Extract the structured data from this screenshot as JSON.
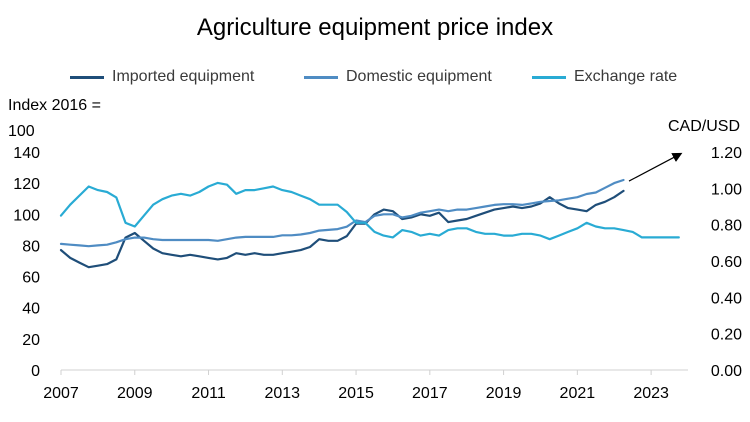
{
  "chart_data": {
    "type": "line",
    "title": "Agriculture equipment price index",
    "ylabel_left": "Index 2016 = 100",
    "ylabel_left_line1": "Index 2016 =",
    "ylabel_left_line2": "100",
    "ylabel_right": "CAD/USD",
    "xlim": [
      2007,
      2024
    ],
    "ylim_left": [
      0,
      140
    ],
    "ylim_right": [
      0,
      1.2
    ],
    "x_ticks": [
      "2007",
      "2009",
      "2011",
      "2013",
      "2015",
      "2017",
      "2019",
      "2021",
      "2023"
    ],
    "y_ticks_left": [
      "0",
      "20",
      "40",
      "60",
      "80",
      "100",
      "120",
      "140"
    ],
    "y_ticks_right": [
      "0.00",
      "0.20",
      "0.40",
      "0.60",
      "0.80",
      "1.00",
      "1.20"
    ],
    "grid": false,
    "legend_position": "top",
    "series": [
      {
        "name": "Imported equipment",
        "axis": "left",
        "color": "#1f4e79",
        "x": [
          2007.0,
          2007.25,
          2007.5,
          2007.75,
          2008.0,
          2008.25,
          2008.5,
          2008.75,
          2009.0,
          2009.25,
          2009.5,
          2009.75,
          2010.0,
          2010.25,
          2010.5,
          2010.75,
          2011.0,
          2011.25,
          2011.5,
          2011.75,
          2012.0,
          2012.25,
          2012.5,
          2012.75,
          2013.0,
          2013.25,
          2013.5,
          2013.75,
          2014.0,
          2014.25,
          2014.5,
          2014.75,
          2015.0,
          2015.25,
          2015.5,
          2015.75,
          2016.0,
          2016.25,
          2016.5,
          2016.75,
          2017.0,
          2017.25,
          2017.5,
          2017.75,
          2018.0,
          2018.25,
          2018.5,
          2018.75,
          2019.0,
          2019.25,
          2019.5,
          2019.75,
          2020.0,
          2020.25,
          2020.5,
          2020.75,
          2021.0,
          2021.25,
          2021.5,
          2021.75,
          2022.0,
          2022.25
        ],
        "values": [
          77,
          72,
          69,
          66,
          67,
          68,
          71,
          85,
          88,
          83,
          78,
          75,
          74,
          73,
          74,
          73,
          72,
          71,
          72,
          75,
          74,
          75,
          74,
          74,
          75,
          76,
          77,
          79,
          84,
          83,
          83,
          86,
          94,
          94,
          100,
          103,
          102,
          97,
          98,
          100,
          99,
          101,
          95,
          96,
          97,
          99,
          101,
          103,
          104,
          105,
          104,
          105,
          107,
          111,
          107,
          104,
          103,
          102,
          106,
          108,
          111,
          115
        ]
      },
      {
        "name": "Domestic equipment",
        "axis": "left",
        "color": "#4f8cc3",
        "x": [
          2007.0,
          2007.25,
          2007.5,
          2007.75,
          2008.0,
          2008.25,
          2008.5,
          2008.75,
          2009.0,
          2009.25,
          2009.5,
          2009.75,
          2010.0,
          2010.25,
          2010.5,
          2010.75,
          2011.0,
          2011.25,
          2011.5,
          2011.75,
          2012.0,
          2012.25,
          2012.5,
          2012.75,
          2013.0,
          2013.25,
          2013.5,
          2013.75,
          2014.0,
          2014.25,
          2014.5,
          2014.75,
          2015.0,
          2015.25,
          2015.5,
          2015.75,
          2016.0,
          2016.25,
          2016.5,
          2016.75,
          2017.0,
          2017.25,
          2017.5,
          2017.75,
          2018.0,
          2018.25,
          2018.5,
          2018.75,
          2019.0,
          2019.25,
          2019.5,
          2019.75,
          2020.0,
          2020.25,
          2020.5,
          2020.75,
          2021.0,
          2021.25,
          2021.5,
          2021.75,
          2022.0,
          2022.25
        ],
        "values": [
          81,
          80.5,
          80,
          79.5,
          80,
          80.5,
          82,
          84,
          85,
          85,
          84,
          83.5,
          83.5,
          83.5,
          83.5,
          83.5,
          83.5,
          83,
          84,
          85,
          85.5,
          85.5,
          85.5,
          85.5,
          86.5,
          86.5,
          87,
          88,
          89.5,
          90,
          90.5,
          92,
          96,
          95,
          99,
          100,
          100,
          98,
          99,
          101,
          102,
          103,
          102,
          103,
          103,
          104,
          105,
          106,
          106.5,
          106.5,
          106,
          107,
          108,
          108.5,
          109,
          110,
          111,
          113,
          114,
          117,
          120,
          122
        ]
      },
      {
        "name": "Exchange rate",
        "axis": "right",
        "color": "#29abd4",
        "x": [
          2007.0,
          2007.25,
          2007.5,
          2007.75,
          2008.0,
          2008.25,
          2008.5,
          2008.75,
          2009.0,
          2009.25,
          2009.5,
          2009.75,
          2010.0,
          2010.25,
          2010.5,
          2010.75,
          2011.0,
          2011.25,
          2011.5,
          2011.75,
          2012.0,
          2012.25,
          2012.5,
          2012.75,
          2013.0,
          2013.25,
          2013.5,
          2013.75,
          2014.0,
          2014.25,
          2014.5,
          2014.75,
          2015.0,
          2015.25,
          2015.5,
          2015.75,
          2016.0,
          2016.25,
          2016.5,
          2016.75,
          2017.0,
          2017.25,
          2017.5,
          2017.75,
          2018.0,
          2018.25,
          2018.5,
          2018.75,
          2019.0,
          2019.25,
          2019.5,
          2019.75,
          2020.0,
          2020.25,
          2020.5,
          2020.75,
          2021.0,
          2021.25,
          2021.5,
          2021.75,
          2022.0,
          2022.25,
          2022.5,
          2022.75,
          2023.0,
          2023.25,
          2023.5,
          2023.75
        ],
        "values": [
          0.85,
          0.91,
          0.96,
          1.01,
          0.99,
          0.98,
          0.95,
          0.81,
          0.79,
          0.85,
          0.91,
          0.94,
          0.96,
          0.97,
          0.96,
          0.98,
          1.01,
          1.03,
          1.02,
          0.97,
          0.99,
          0.99,
          1.0,
          1.01,
          0.99,
          0.98,
          0.96,
          0.94,
          0.91,
          0.91,
          0.91,
          0.87,
          0.81,
          0.81,
          0.76,
          0.74,
          0.73,
          0.77,
          0.76,
          0.74,
          0.75,
          0.74,
          0.77,
          0.78,
          0.78,
          0.76,
          0.75,
          0.75,
          0.74,
          0.74,
          0.75,
          0.75,
          0.74,
          0.72,
          0.74,
          0.76,
          0.78,
          0.81,
          0.79,
          0.78,
          0.78,
          0.77,
          0.76,
          0.73,
          0.73,
          0.73,
          0.73,
          0.73
        ]
      }
    ],
    "annotations": [
      {
        "type": "arrow",
        "from": [
          2022.4,
          1.04
        ],
        "to": [
          2023.8,
          1.19
        ]
      }
    ]
  }
}
